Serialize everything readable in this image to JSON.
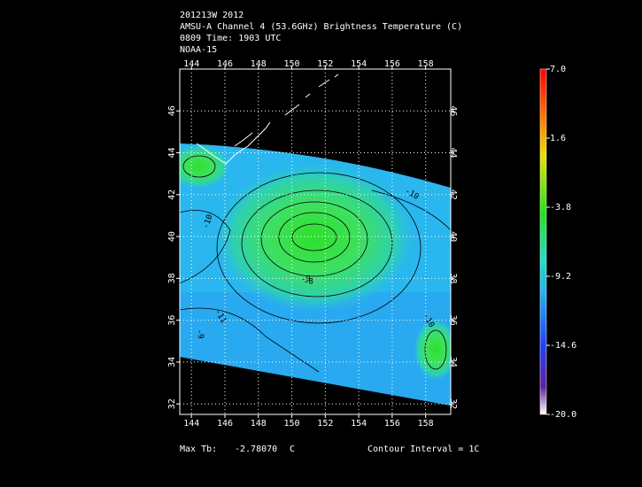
{
  "header": {
    "lines": [
      "201213W 2012",
      "AMSU-A Channel 4 (53.6GHz) Brightness Temperature (C)",
      "0809 Time: 1903 UTC",
      "NOAA-15"
    ]
  },
  "map": {
    "xlim": [
      143.3,
      159.5
    ],
    "ylim": [
      31.5,
      48.0
    ],
    "xticks": [
      144,
      146,
      148,
      150,
      152,
      154,
      156,
      158
    ],
    "yticks": [
      32,
      34,
      36,
      38,
      40,
      42,
      44,
      46
    ],
    "contour_labels": [
      "-10",
      "-10",
      "-9",
      "-8",
      "-11",
      "-10",
      "-9"
    ]
  },
  "colorbar": {
    "lim": [
      -20,
      7
    ],
    "ticks": [
      {
        "value": 7,
        "label": "7.0"
      },
      1.6,
      -3.8,
      -9.2,
      -14.6,
      {
        "value": -20,
        "label": "-20.0"
      }
    ]
  },
  "footer": {
    "max_label": "Max Tb:",
    "max_value": "-2.78070",
    "max_unit": "C",
    "contour_interval": "Contour Interval = 1C"
  }
}
